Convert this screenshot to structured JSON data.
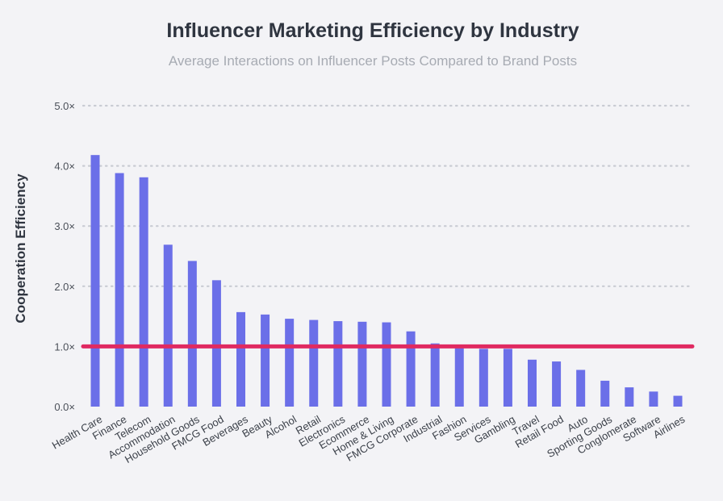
{
  "chart_data": {
    "type": "bar",
    "title": "Influencer Marketing Efficiency by Industry",
    "subtitle": "Average Interactions on Influencer Posts Compared to Brand Posts",
    "ylabel": "Cooperation Efficiency",
    "xlabel": "",
    "ylim": [
      0,
      5
    ],
    "yticks": [
      0,
      1,
      2,
      3,
      4,
      5
    ],
    "ytick_labels": [
      "0.0×",
      "1.0×",
      "2.0×",
      "3.0×",
      "4.0×",
      "5.0×"
    ],
    "categories": [
      "Health Care",
      "Finance",
      "Telecom",
      "Accommodation",
      "Household Goods",
      "FMCG Food",
      "Beverages",
      "Beauty",
      "Alcohol",
      "Retail",
      "Electronics",
      "Ecommerce",
      "Home & Living",
      "FMCG Corporate",
      "Industrial",
      "Fashion",
      "Services",
      "Gambling",
      "Travel",
      "Retail Food",
      "Auto",
      "Sporting Goods",
      "Conglomerate",
      "Software",
      "Airlines"
    ],
    "values": [
      4.18,
      3.88,
      3.81,
      2.69,
      2.42,
      2.1,
      1.57,
      1.53,
      1.46,
      1.44,
      1.42,
      1.41,
      1.4,
      1.25,
      1.05,
      0.97,
      0.96,
      0.96,
      0.78,
      0.75,
      0.61,
      0.43,
      0.32,
      0.25,
      0.18
    ],
    "reference_line": 1.0,
    "grid": true,
    "colors": {
      "bar": "#6b6fe8",
      "reference_line": "#e02a61",
      "grid": "#c9ccd3"
    }
  }
}
